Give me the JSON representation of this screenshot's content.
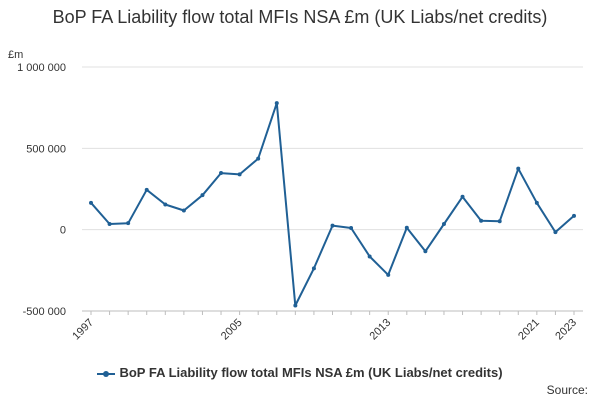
{
  "chart_data": {
    "type": "line",
    "title": "BoP FA Liability flow total MFIs NSA £m (UK Liabs/net credits)",
    "yunit": "£m",
    "x": [
      1997,
      1998,
      1999,
      2000,
      2001,
      2002,
      2003,
      2004,
      2005,
      2006,
      2007,
      2008,
      2009,
      2010,
      2011,
      2012,
      2013,
      2014,
      2015,
      2016,
      2017,
      2018,
      2019,
      2020,
      2021,
      2022,
      2023
    ],
    "series": [
      {
        "name": "BoP FA Liability flow total MFIs NSA £m (UK Liabs/net credits)",
        "color": "#206095",
        "values": [
          165000,
          35000,
          40000,
          245000,
          155000,
          118000,
          212000,
          348000,
          340000,
          437000,
          778000,
          -466000,
          -238000,
          25000,
          10000,
          -165000,
          -278000,
          12000,
          -133000,
          35000,
          202000,
          55000,
          52000,
          375000,
          165000,
          -15000,
          85000
        ]
      }
    ],
    "ylim": [
      -500000,
      1000000
    ],
    "yticks": [
      {
        "value": 1000000,
        "label": "1 000 000"
      },
      {
        "value": 500000,
        "label": "500 000"
      },
      {
        "value": 0,
        "label": "0"
      },
      {
        "value": -500000,
        "label": "-500 000"
      }
    ],
    "xticks": [
      {
        "value": 1997,
        "label": "1997"
      },
      {
        "value": 2005,
        "label": "2005"
      },
      {
        "value": 2013,
        "label": "2013"
      },
      {
        "value": 2021,
        "label": "2021"
      },
      {
        "value": 2023,
        "label": "2023"
      }
    ],
    "grid": true,
    "legend_position": "bottom"
  },
  "legend_label": "BoP FA Liability flow total MFIs NSA £m (UK Liabs/net credits)",
  "source_label": "Source:"
}
